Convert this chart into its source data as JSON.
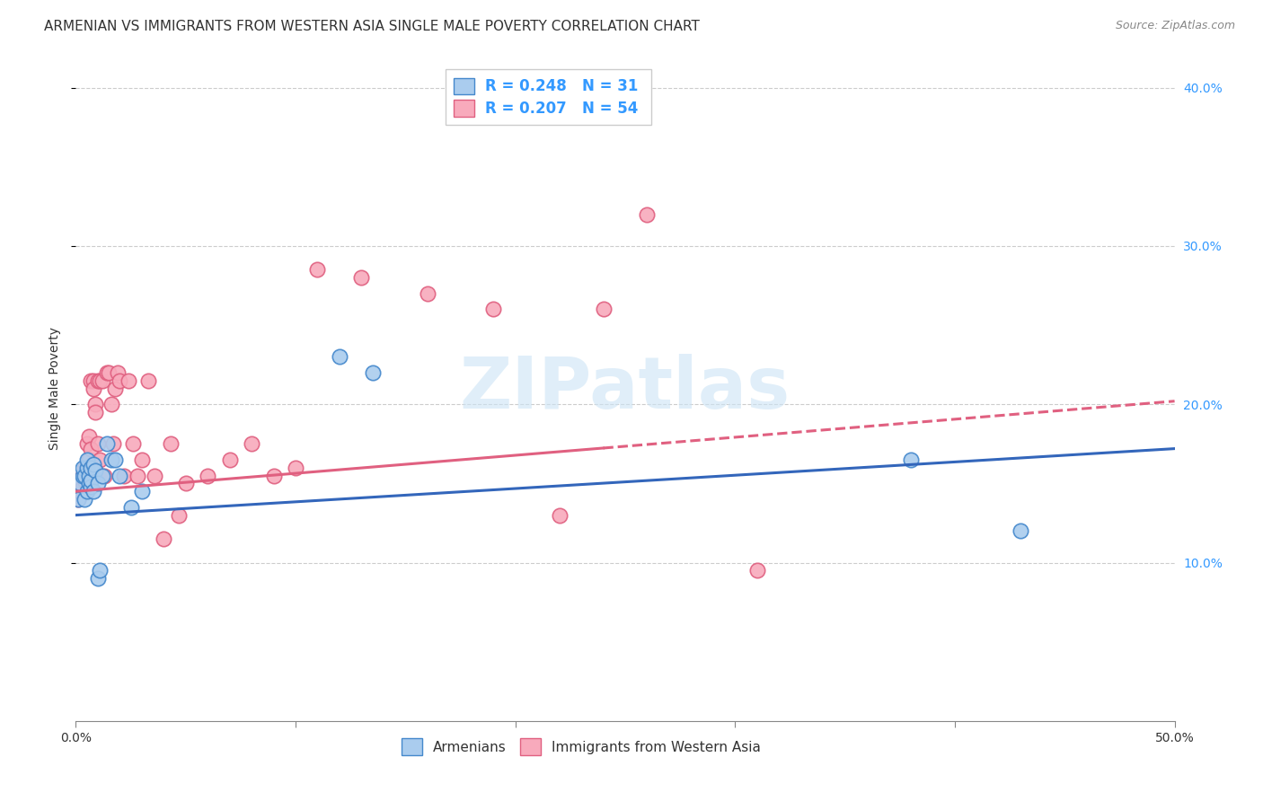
{
  "title": "ARMENIAN VS IMMIGRANTS FROM WESTERN ASIA SINGLE MALE POVERTY CORRELATION CHART",
  "source": "Source: ZipAtlas.com",
  "ylabel": "Single Male Poverty",
  "xlim": [
    0.0,
    0.5
  ],
  "ylim": [
    0.0,
    0.42
  ],
  "xticks": [
    0.0,
    0.1,
    0.2,
    0.3,
    0.4,
    0.5
  ],
  "xticklabels": [
    "0.0%",
    "",
    "",
    "",
    "",
    "50.0%"
  ],
  "yticks_right": [
    0.1,
    0.2,
    0.3,
    0.4
  ],
  "yticklabels_right": [
    "10.0%",
    "20.0%",
    "30.0%",
    "40.0%"
  ],
  "grid_color": "#cccccc",
  "background_color": "#ffffff",
  "watermark_text": "ZIPatlas",
  "armenian_R": 0.248,
  "armenian_N": 31,
  "armenian_color": "#aaccee",
  "armenian_edge_color": "#4488cc",
  "armenian_line_color": "#3366bb",
  "immigrants_R": 0.207,
  "immigrants_N": 54,
  "immigrants_color": "#f8aabc",
  "immigrants_edge_color": "#e06080",
  "immigrants_line_color": "#e06080",
  "armenian_x": [
    0.001,
    0.002,
    0.003,
    0.003,
    0.004,
    0.004,
    0.005,
    0.005,
    0.005,
    0.006,
    0.006,
    0.007,
    0.007,
    0.007,
    0.008,
    0.008,
    0.009,
    0.01,
    0.01,
    0.011,
    0.012,
    0.014,
    0.016,
    0.018,
    0.02,
    0.025,
    0.03,
    0.12,
    0.135,
    0.38,
    0.43
  ],
  "armenian_y": [
    0.14,
    0.15,
    0.155,
    0.16,
    0.155,
    0.14,
    0.16,
    0.165,
    0.145,
    0.15,
    0.155,
    0.148,
    0.152,
    0.16,
    0.145,
    0.162,
    0.158,
    0.15,
    0.09,
    0.095,
    0.155,
    0.175,
    0.165,
    0.165,
    0.155,
    0.135,
    0.145,
    0.23,
    0.22,
    0.165,
    0.12
  ],
  "immigrants_x": [
    0.001,
    0.002,
    0.003,
    0.003,
    0.004,
    0.004,
    0.005,
    0.005,
    0.006,
    0.006,
    0.006,
    0.007,
    0.007,
    0.008,
    0.008,
    0.009,
    0.009,
    0.01,
    0.01,
    0.011,
    0.011,
    0.012,
    0.013,
    0.014,
    0.015,
    0.016,
    0.017,
    0.018,
    0.019,
    0.02,
    0.022,
    0.024,
    0.026,
    0.028,
    0.03,
    0.033,
    0.036,
    0.04,
    0.043,
    0.047,
    0.05,
    0.06,
    0.07,
    0.08,
    0.09,
    0.1,
    0.11,
    0.13,
    0.16,
    0.19,
    0.22,
    0.24,
    0.26,
    0.31
  ],
  "immigrants_y": [
    0.14,
    0.145,
    0.148,
    0.155,
    0.152,
    0.16,
    0.16,
    0.175,
    0.165,
    0.15,
    0.18,
    0.172,
    0.215,
    0.215,
    0.21,
    0.2,
    0.195,
    0.175,
    0.215,
    0.215,
    0.165,
    0.215,
    0.155,
    0.22,
    0.22,
    0.2,
    0.175,
    0.21,
    0.22,
    0.215,
    0.155,
    0.215,
    0.175,
    0.155,
    0.165,
    0.215,
    0.155,
    0.115,
    0.175,
    0.13,
    0.15,
    0.155,
    0.165,
    0.175,
    0.155,
    0.16,
    0.285,
    0.28,
    0.27,
    0.26,
    0.13,
    0.26,
    0.32,
    0.095
  ],
  "armenian_line_x_start": 0.0,
  "armenian_line_x_end": 0.5,
  "armenian_line_y_start": 0.13,
  "armenian_line_y_end": 0.172,
  "immigrants_line_x_solid_end": 0.24,
  "immigrants_line_x_end": 0.5,
  "immigrants_line_y_start": 0.145,
  "immigrants_line_y_end": 0.202,
  "legend_labels": [
    "Armenians",
    "Immigrants from Western Asia"
  ],
  "title_fontsize": 11,
  "label_fontsize": 10,
  "tick_fontsize": 10,
  "legend_fontsize": 11
}
